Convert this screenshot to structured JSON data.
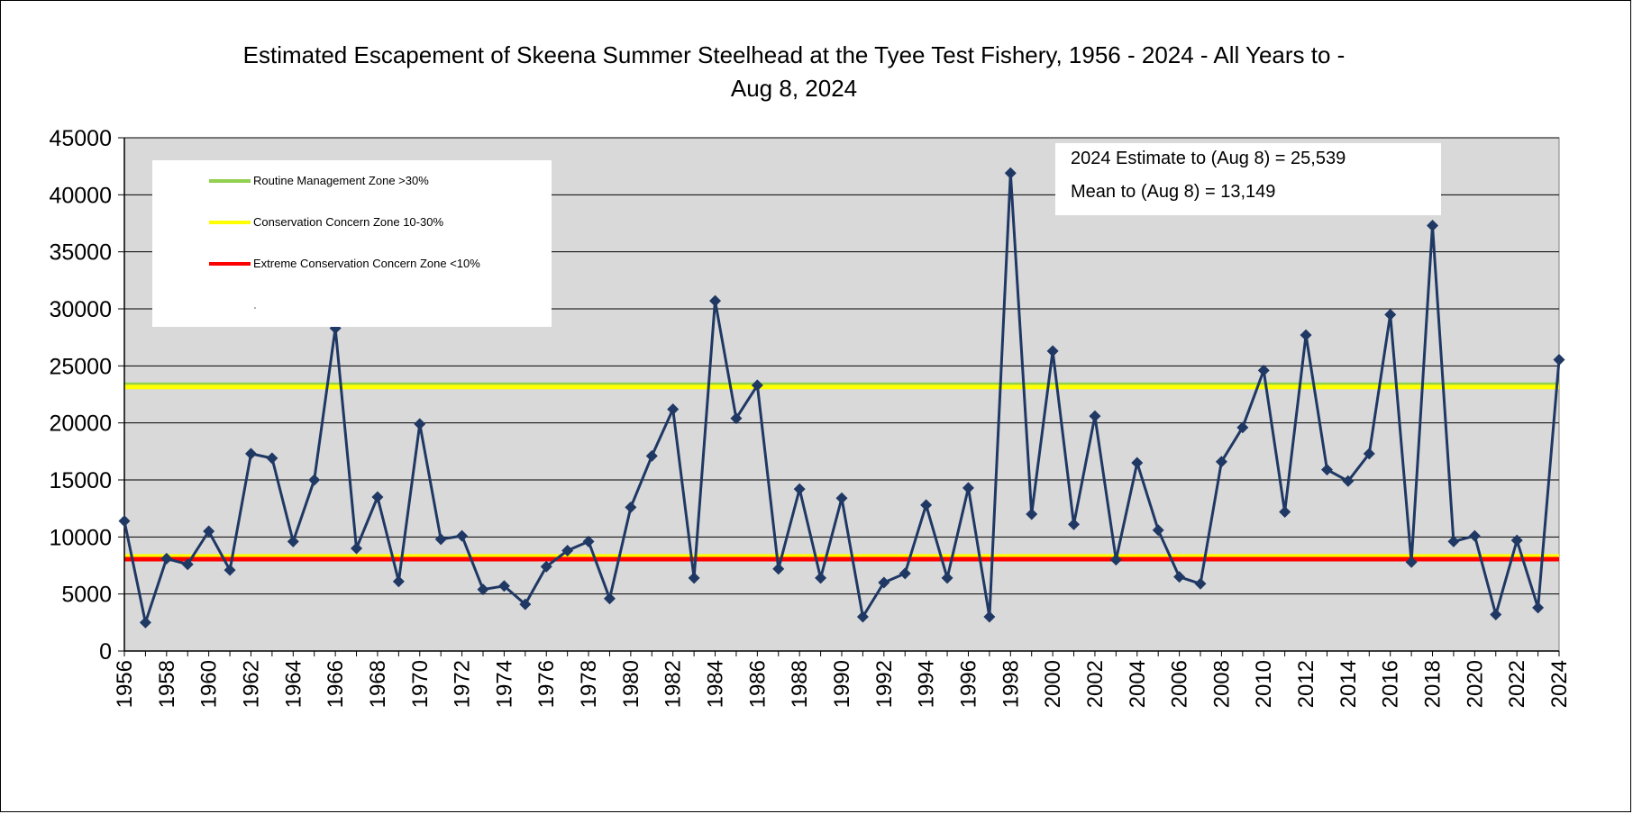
{
  "chart_data": {
    "type": "line",
    "title_lines": [
      "Estimated Escapement of Skeena Summer Steelhead at the Tyee Test Fishery, 1956 - 2024 - All Years to -",
      "Aug 8, 2024"
    ],
    "xlabel": "",
    "ylabel": "",
    "ylim": [
      0,
      45000
    ],
    "y_ticks": [
      0,
      5000,
      10000,
      15000,
      20000,
      25000,
      30000,
      35000,
      40000,
      45000
    ],
    "x_range": [
      1956,
      2024
    ],
    "x_tick_labels": [
      "1956",
      "1958",
      "1960",
      "1962",
      "1964",
      "1966",
      "1968",
      "1970",
      "1972",
      "1974",
      "1976",
      "1978",
      "1980",
      "1982",
      "1984",
      "1986",
      "1988",
      "1990",
      "1992",
      "1994",
      "1996",
      "1998",
      "2000",
      "2002",
      "2004",
      "2006",
      "2008",
      "2010",
      "2012",
      "2014",
      "2016",
      "2018",
      "2020",
      "2022",
      "2024"
    ],
    "grid": true,
    "background_color": "#d9d9d9",
    "series_color": "#1f3864",
    "x": [
      1956,
      1957,
      1958,
      1959,
      1960,
      1961,
      1962,
      1963,
      1964,
      1965,
      1966,
      1967,
      1968,
      1969,
      1970,
      1971,
      1972,
      1973,
      1974,
      1975,
      1976,
      1977,
      1978,
      1979,
      1980,
      1981,
      1982,
      1983,
      1984,
      1985,
      1986,
      1987,
      1988,
      1989,
      1990,
      1991,
      1992,
      1993,
      1994,
      1995,
      1996,
      1997,
      1998,
      1999,
      2000,
      2001,
      2002,
      2003,
      2004,
      2005,
      2006,
      2007,
      2008,
      2009,
      2010,
      2011,
      2012,
      2013,
      2014,
      2015,
      2016,
      2017,
      2018,
      2019,
      2020,
      2021,
      2022,
      2023,
      2024
    ],
    "series": [
      {
        "values": [
          11400,
          2500,
          8100,
          7600,
          10500,
          7100,
          17300,
          16900,
          9600,
          15000,
          28300,
          9000,
          13500,
          6100,
          19900,
          9800,
          10100,
          5400,
          5700,
          4100,
          7400,
          8800,
          9600,
          4600,
          12600,
          17100,
          21200,
          6400,
          30700,
          20400,
          23300,
          7200,
          14200,
          6400,
          13400,
          3000,
          6000,
          6800,
          12800,
          6400,
          14300,
          3000,
          41900,
          12000,
          26300,
          11100,
          20600,
          8000,
          16500,
          10600,
          6500,
          5900,
          16600,
          19600,
          24600,
          12200,
          27700,
          15900,
          14900,
          17300,
          29500,
          7800,
          37300,
          9600,
          10100,
          3200,
          9700,
          3800,
          25539
        ]
      }
    ],
    "reference_lines": [
      {
        "label": "Routine Management Zone >30%",
        "color": "#92d050",
        "value": 23350
      },
      {
        "label": "Conservation Concern Zone 10-30%",
        "color": "#ffff00",
        "value": 23150
      },
      {
        "label": "Conservation Concern Zone 10-30%",
        "color": "#ffff00",
        "value": 8300
      },
      {
        "label": "Extreme Conservation Concern Zone <10%",
        "color": "#ff0000",
        "value": 8050
      }
    ],
    "legend": {
      "placement": "top-left",
      "entries": [
        {
          "label": "Routine Management Zone >30%",
          "color": "#92d050"
        },
        {
          "label": "Conservation Concern Zone 10-30%",
          "color": "#ffff00"
        },
        {
          "label": "Extreme Conservation Concern Zone <10%",
          "color": "#ff0000"
        }
      ]
    },
    "annotations": [
      "2024 Estimate to (Aug 8) =  25,539",
      "Mean to (Aug 8) = 13,149"
    ]
  }
}
